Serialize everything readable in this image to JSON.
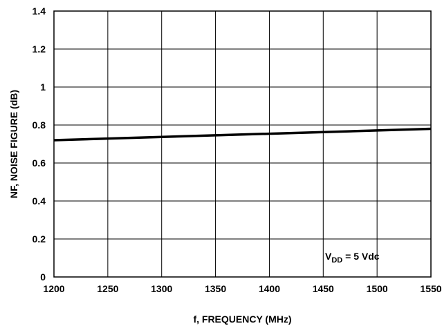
{
  "chart_data": {
    "type": "line",
    "title": "",
    "xlabel": "f, FREQUENCY (MHz)",
    "ylabel": "NF, NOISE FIGURE (dB)",
    "xlim": [
      1200,
      1550
    ],
    "ylim": [
      0,
      1.4
    ],
    "xticks": [
      1200,
      1250,
      1300,
      1350,
      1400,
      1450,
      1500,
      1550
    ],
    "yticks": [
      0,
      0.2,
      0.4,
      0.6,
      0.8,
      1,
      1.2,
      1.4
    ],
    "xtick_labels": [
      "1200",
      "1250",
      "1300",
      "1350",
      "1400",
      "1450",
      "1500",
      "1550"
    ],
    "ytick_labels": [
      "0",
      "0.2",
      "0.4",
      "0.6",
      "0.8",
      "1",
      "1.2",
      "1.4"
    ],
    "grid": true,
    "series": [
      {
        "x": [
          1200,
          1550
        ],
        "y": [
          0.72,
          0.78
        ]
      }
    ],
    "annotation": {
      "base": "V",
      "sub": "DD",
      "rest": " = 5 Vdc"
    }
  }
}
